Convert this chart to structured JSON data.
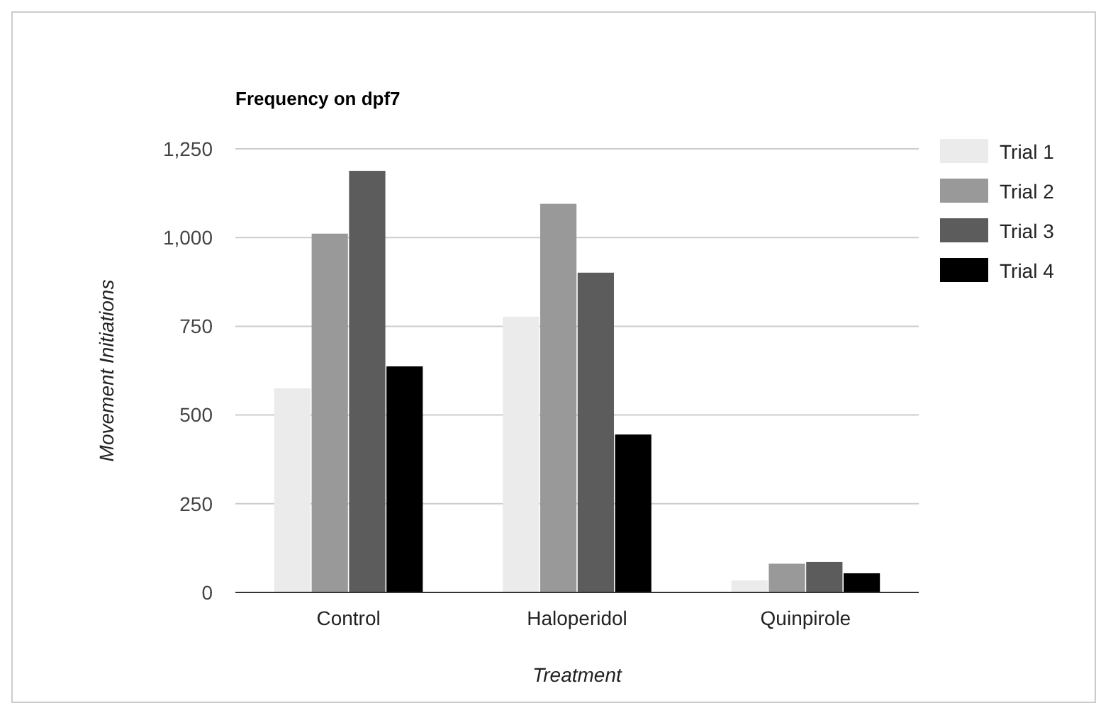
{
  "chart_data": {
    "type": "bar",
    "title": "Frequency on dpf7",
    "xlabel": "Treatment",
    "ylabel": "Movement Initiations",
    "categories": [
      "Control",
      "Haloperidol",
      "Quinpirole"
    ],
    "series": [
      {
        "name": "Trial 1",
        "color": "#ebebeb",
        "values": [
          575,
          777,
          34
        ]
      },
      {
        "name": "Trial 2",
        "color": "#999999",
        "values": [
          1011,
          1095,
          81
        ]
      },
      {
        "name": "Trial 3",
        "color": "#5c5c5c",
        "values": [
          1188,
          901,
          86
        ]
      },
      {
        "name": "Trial 4",
        "color": "#000000",
        "values": [
          637,
          445,
          54
        ]
      }
    ],
    "ylim": [
      0,
      1250
    ],
    "yticks": [
      0,
      250,
      500,
      750,
      {
        "value": 1000,
        "label": "1,000"
      },
      {
        "value": 1250,
        "label": "1,250"
      }
    ],
    "grid": "y",
    "legend": "top right"
  }
}
